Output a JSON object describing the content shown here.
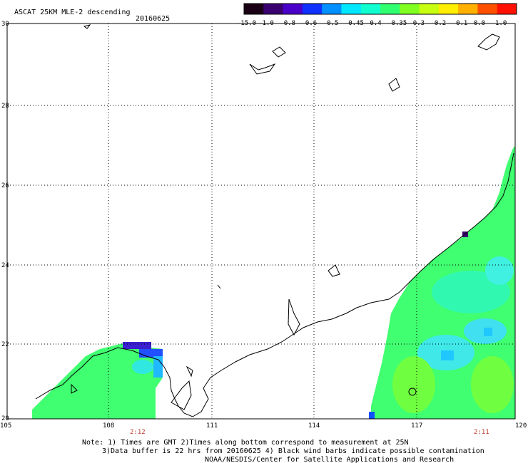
{
  "map": {
    "title": "ASCAT 25KM MLE-2 descending",
    "date": "20160625",
    "lat_labels": [
      "30",
      "28",
      "26",
      "24",
      "22",
      "20"
    ],
    "lon_labels": [
      "105",
      "108",
      "111",
      "114",
      "117",
      "120"
    ],
    "pass_times": [
      "2:12",
      "2:11"
    ],
    "colorbar": {
      "labels": [
        "-15.0",
        "-1.0",
        "-0.8",
        "-0.6",
        "-0.5",
        "-0.45",
        "-0.4",
        "-0.35",
        "-0.3",
        "-0.2",
        "-0.1",
        "0.0",
        "1.0"
      ],
      "colors": [
        "#1a0015",
        "#3a0070",
        "#4a00c8",
        "#1030ff",
        "#0090ff",
        "#00e8ff",
        "#10ffd0",
        "#30ff70",
        "#80ff20",
        "#c8ff10",
        "#ffee00",
        "#ffb000",
        "#ff5000",
        "#ff1000"
      ]
    },
    "notes": [
      "Note: 1) Times are GMT 2)Times along bottom correspond to measurement at 25N",
      "3)Data buffer is 22 hrs from 20160625 4) Black wind barbs indicate possible contamination",
      "NOAA/NESDIS/Center for Satellite Applications and Research"
    ]
  }
}
